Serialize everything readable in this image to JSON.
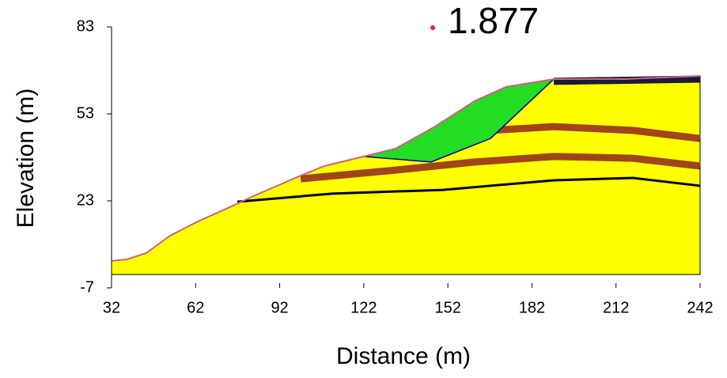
{
  "chart_data": {
    "type": "section",
    "annotation": "1.877",
    "xlabel": "Distance (m)",
    "ylabel": "Elevation (m)",
    "xlim": [
      32,
      242
    ],
    "xticks": [
      32,
      62,
      92,
      122,
      152,
      182,
      212,
      242
    ],
    "ylim": [
      -7,
      83
    ],
    "yticks": [
      83,
      53,
      23,
      -7
    ],
    "base_elevation": -2.4,
    "surface": {
      "color": "#d06080",
      "fill": "#ffff00",
      "x": [
        32,
        37.4,
        44.4,
        52.9,
        62.8,
        74.1,
        82.5,
        99.5,
        107.9,
        122,
        133.3,
        147.4,
        161.5,
        172.8,
        189.8,
        215.2,
        242
      ],
      "values": [
        2.3,
        2.8,
        5.0,
        11.0,
        15.9,
        20.8,
        24.6,
        31.7,
        35.0,
        38.3,
        41.0,
        48.6,
        57.4,
        62.3,
        65.0,
        65.0,
        66.1
      ]
    },
    "slip": {
      "color": "#22dd22",
      "x": [
        122,
        133.3,
        147.4,
        161.5,
        172.8,
        189.8,
        167.2,
        146,
        122
      ],
      "values": [
        38.3,
        41.0,
        48.6,
        57.4,
        62.3,
        65.0,
        44.5,
        36.4,
        38.3
      ]
    },
    "series": [
      {
        "style": "band",
        "color": "#a0441a",
        "x": [
          99.5,
          133.3,
          161.5,
          189.8,
          218,
          242
        ],
        "values": [
          30.6,
          33.6,
          36.4,
          38.3,
          37.7,
          35.0
        ]
      },
      {
        "style": "band",
        "color": "#a0441a",
        "x": [
          167.2,
          189.8,
          218,
          242
        ],
        "values": [
          47.3,
          48.6,
          47.3,
          44.5
        ]
      },
      {
        "style": "line",
        "color": "#000000",
        "x": [
          76.9,
          110.7,
          150.3,
          189.8,
          218,
          242
        ],
        "values": [
          22.7,
          25.5,
          26.8,
          30.1,
          30.9,
          28.2
        ]
      },
      {
        "style": "band",
        "color": "#1a1a3a",
        "x": [
          189.8,
          242
        ],
        "values": [
          64.2,
          65.0
        ]
      }
    ]
  }
}
